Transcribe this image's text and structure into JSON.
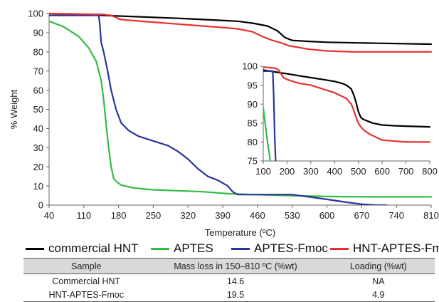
{
  "chart_data": [
    {
      "type": "line",
      "xlabel": "Temperature (ºC)",
      "ylabel": "% Weight",
      "xlim": [
        40,
        810
      ],
      "ylim": [
        0,
        100
      ],
      "xticks": [
        40,
        110,
        180,
        250,
        320,
        390,
        460,
        530,
        600,
        670,
        740,
        810
      ],
      "yticks": [
        0,
        10,
        20,
        30,
        40,
        50,
        60,
        70,
        80,
        90,
        100
      ],
      "grid": false,
      "legend": "bottom",
      "series": [
        {
          "name": "commercial HNT",
          "color": "#000000",
          "x": [
            40,
            150,
            200,
            300,
            380,
            420,
            450,
            480,
            500,
            515,
            530,
            560,
            600,
            700,
            810
          ],
          "y": [
            100,
            99,
            98.5,
            97.5,
            96.5,
            96,
            95,
            93.5,
            91,
            87.5,
            86,
            85.5,
            85,
            84.5,
            84
          ]
        },
        {
          "name": "APTES",
          "color": "#33bb44",
          "x": [
            40,
            70,
            100,
            120,
            135,
            145,
            150,
            155,
            160,
            165,
            170,
            175,
            185,
            210,
            250,
            300,
            350,
            400,
            450,
            530,
            600,
            700,
            810
          ],
          "y": [
            96,
            93,
            88,
            82,
            75,
            65,
            55,
            42,
            30,
            20,
            14,
            12.5,
            10.5,
            9,
            8,
            7.5,
            7,
            6,
            5.5,
            5,
            4.5,
            4.3,
            4.3
          ]
        },
        {
          "name": "APTES-Fmoc",
          "color": "#2a3599",
          "x": [
            40,
            140,
            142,
            145,
            150,
            158,
            165,
            175,
            185,
            200,
            220,
            250,
            280,
            300,
            320,
            340,
            360,
            380,
            400,
            410,
            420,
            460,
            530,
            600,
            640,
            670,
            700,
            720
          ],
          "y": [
            99,
            99,
            95,
            85,
            80,
            70,
            60,
            50,
            43,
            39,
            36,
            33.5,
            31,
            28,
            24,
            19,
            15,
            13,
            10,
            7,
            5.5,
            5.5,
            5.5,
            3,
            1.5,
            0.5,
            0,
            0
          ]
        },
        {
          "name": "HNT-APTES-Fmoc",
          "color": "#e8312f",
          "x": [
            40,
            150,
            165,
            175,
            182,
            200,
            250,
            300,
            350,
            400,
            420,
            450,
            470,
            490,
            510,
            525,
            540,
            560,
            600,
            650,
            700,
            810
          ],
          "y": [
            100,
            99.5,
            99,
            98,
            97,
            96.5,
            95.5,
            94.5,
            93.5,
            92.5,
            92,
            90.5,
            88,
            86,
            84.5,
            83,
            82.5,
            81.5,
            80.5,
            80,
            80,
            80
          ]
        }
      ]
    },
    {
      "type": "line",
      "xlim": [
        100,
        800
      ],
      "ylim": [
        75,
        100
      ],
      "xticks": [
        100,
        200,
        300,
        400,
        500,
        600,
        700,
        800
      ],
      "yticks": [
        75,
        80,
        85,
        90,
        95,
        100
      ],
      "grid": false,
      "series": [
        {
          "name": "commercial HNT",
          "color": "#000000",
          "x": [
            100,
            150,
            200,
            250,
            300,
            350,
            400,
            430,
            450,
            470,
            480,
            490,
            500,
            510,
            520,
            560,
            600,
            650,
            700,
            800
          ],
          "y": [
            99,
            98.5,
            98,
            97.5,
            97,
            96.5,
            96,
            95.5,
            95,
            94,
            92.5,
            90.5,
            88,
            86.5,
            86,
            85,
            84.5,
            84.3,
            84.2,
            84
          ]
        },
        {
          "name": "APTES",
          "color": "#33bb44",
          "x": [
            100,
            110,
            120,
            130
          ],
          "y": [
            89,
            84,
            79,
            75
          ]
        },
        {
          "name": "APTES-Fmoc",
          "color": "#2a3599",
          "x": [
            100,
            138,
            140,
            144,
            148,
            152
          ],
          "y": [
            98.7,
            98.7,
            98.5,
            92,
            82,
            75
          ]
        },
        {
          "name": "HNT-APTES-Fmoc",
          "color": "#e8312f",
          "x": [
            100,
            150,
            165,
            175,
            185,
            200,
            250,
            300,
            350,
            400,
            450,
            470,
            480,
            490,
            500,
            510,
            525,
            550,
            600,
            700,
            800
          ],
          "y": [
            99.8,
            99.5,
            99,
            98,
            97,
            96.5,
            95.5,
            95,
            94,
            93,
            91.5,
            90,
            88.5,
            86.5,
            85,
            84,
            83,
            82,
            80.5,
            80,
            80
          ]
        }
      ]
    }
  ],
  "table": {
    "headers": [
      "Sample",
      "Mass loss in 150–810 ºC (%wt)",
      "Loading (%wt)"
    ],
    "rows": [
      [
        "Commercial HNT",
        "14.6",
        "NA"
      ],
      [
        "HNT-APTES-Fmoc",
        "19.5",
        "4.9"
      ]
    ]
  }
}
